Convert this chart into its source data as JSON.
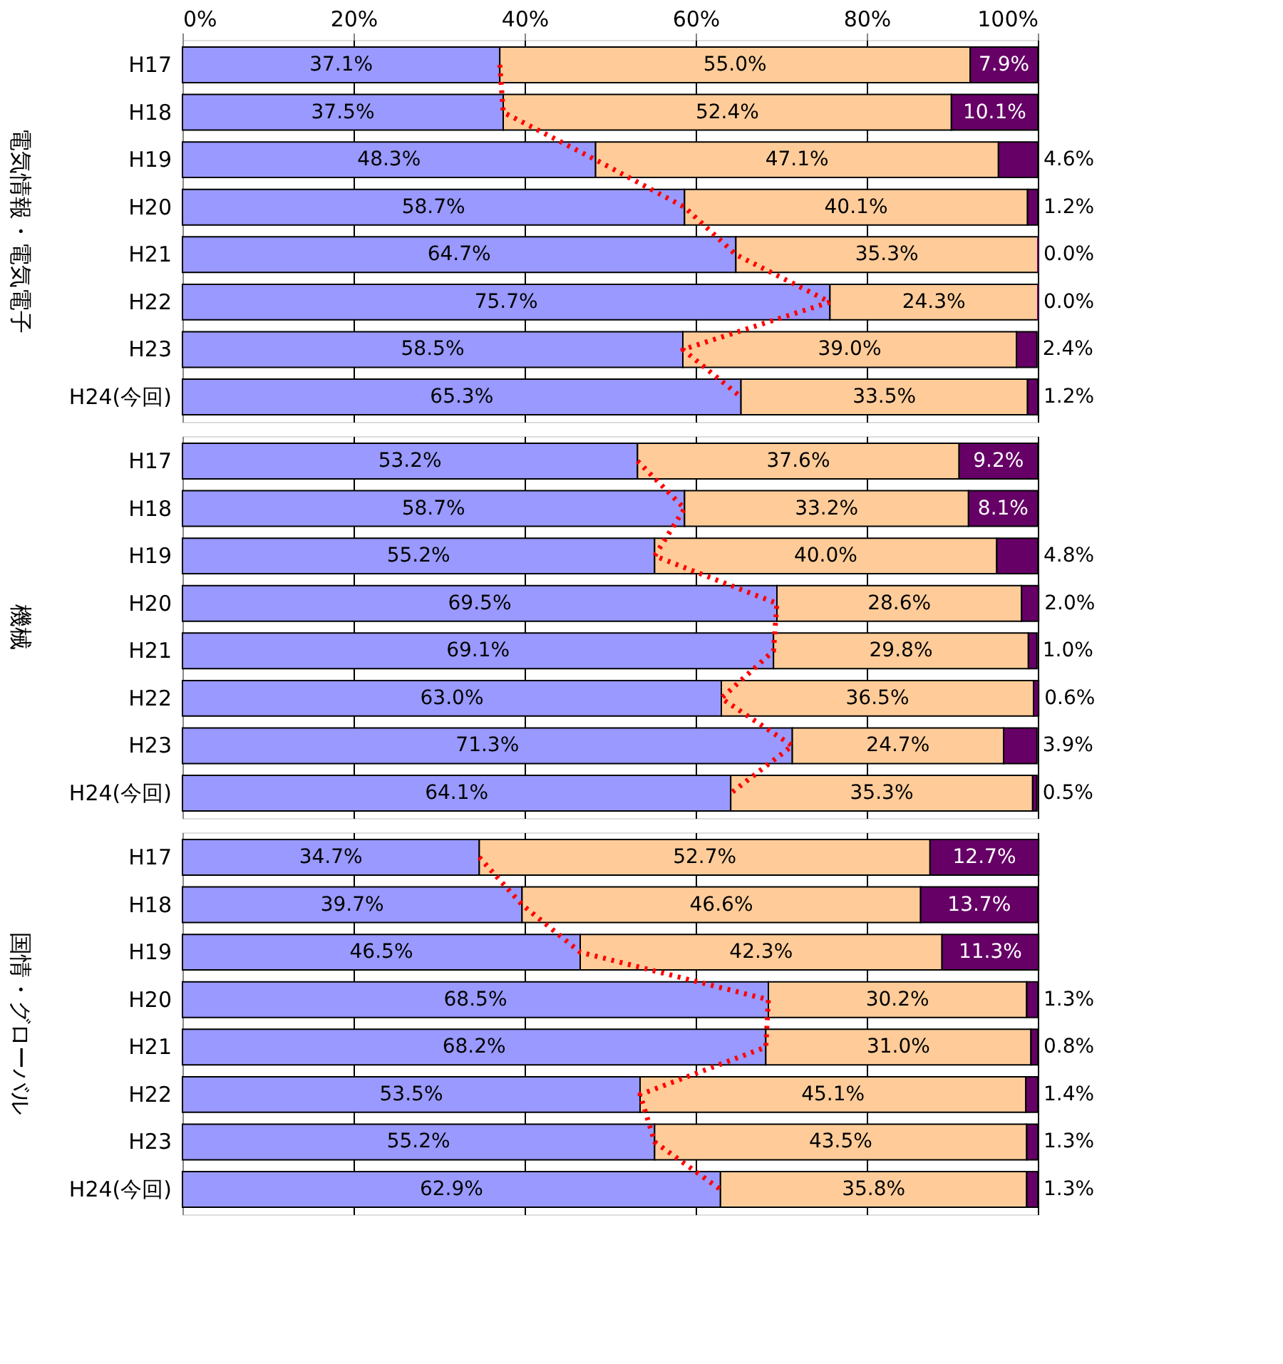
{
  "chart_data": [
    {
      "type": "bar",
      "orientation": "horizontal",
      "stacked": true,
      "title": "電気情報・電気電子",
      "categories": [
        "H17",
        "H18",
        "H19",
        "H20",
        "H21",
        "H22",
        "H23",
        "H24(今回)"
      ],
      "xlim": [
        0,
        100
      ],
      "xticks": [
        {
          "value": 0,
          "label": "0%"
        },
        {
          "value": 20,
          "label": "20%"
        },
        {
          "value": 40,
          "label": "40%"
        },
        {
          "value": 60,
          "label": "60%"
        },
        {
          "value": 80,
          "label": "80%"
        },
        {
          "value": 100,
          "label": "100%"
        }
      ],
      "grid": "x",
      "series": [
        {
          "color": "#9999ff",
          "values": [
            37.1,
            37.5,
            48.3,
            58.7,
            64.7,
            75.7,
            58.5,
            65.3
          ],
          "value_labels": [
            "37.1%",
            "37.5%",
            "48.3%",
            "58.7%",
            "64.7%",
            "75.7%",
            "58.5%",
            "65.3%"
          ]
        },
        {
          "color": "#ffcc99",
          "values": [
            55.0,
            52.4,
            47.1,
            40.1,
            35.3,
            24.3,
            39.0,
            33.5
          ],
          "value_labels": [
            "55.0%",
            "52.4%",
            "47.1%",
            "40.1%",
            "35.3%",
            "24.3%",
            "39.0%",
            "33.5%"
          ]
        },
        {
          "color": "#660066",
          "values": [
            7.9,
            10.1,
            4.6,
            1.2,
            0.0,
            0.0,
            2.4,
            1.2
          ],
          "value_labels": [
            "7.9%",
            "10.1%",
            "4.6%",
            "1.2%",
            "0.0%",
            "0.0%",
            "2.4%",
            "1.2%"
          ]
        },
        {
          "type": "line",
          "color": "#ff0000",
          "line_style": "dotted",
          "values": [
            37.1,
            37.5,
            48.3,
            58.7,
            64.7,
            75.7,
            58.5,
            65.3
          ]
        }
      ]
    },
    {
      "type": "bar",
      "orientation": "horizontal",
      "stacked": true,
      "title": "機械",
      "categories": [
        "H17",
        "H18",
        "H19",
        "H20",
        "H21",
        "H22",
        "H23",
        "H24(今回)"
      ],
      "xlim": [
        0,
        100
      ],
      "xticks": [
        {
          "value": 0,
          "label": null
        },
        {
          "value": 20,
          "label": null
        },
        {
          "value": 40,
          "label": null
        },
        {
          "value": 60,
          "label": null
        },
        {
          "value": 80,
          "label": null
        },
        {
          "value": 100,
          "label": null
        }
      ],
      "grid": "x",
      "tick_labels": "y",
      "series": [
        {
          "color": "#9999ff",
          "values": [
            53.2,
            58.7,
            55.2,
            69.5,
            69.1,
            63.0,
            71.3,
            64.1
          ],
          "value_labels": [
            "53.2%",
            "58.7%",
            "55.2%",
            "69.5%",
            "69.1%",
            "63.0%",
            "71.3%",
            "64.1%"
          ]
        },
        {
          "color": "#ffcc99",
          "values": [
            37.6,
            33.2,
            40.0,
            28.6,
            29.8,
            36.5,
            24.7,
            35.3
          ],
          "value_labels": [
            "37.6%",
            "33.2%",
            "40.0%",
            "28.6%",
            "29.8%",
            "36.5%",
            "24.7%",
            "35.3%"
          ]
        },
        {
          "color": "#660066",
          "values": [
            9.2,
            8.1,
            4.8,
            2.0,
            1.0,
            0.6,
            3.9,
            0.5
          ],
          "value_labels": [
            "9.2%",
            "8.1%",
            "4.8%",
            "2.0%",
            "1.0%",
            "0.6%",
            "3.9%",
            "0.5%"
          ]
        },
        {
          "type": "line",
          "color": "#ff0000",
          "line_style": "dotted",
          "values": [
            53.2,
            58.7,
            55.2,
            69.5,
            69.1,
            63.0,
            71.3,
            64.1
          ]
        }
      ]
    },
    {
      "type": "bar",
      "orientation": "horizontal",
      "stacked": true,
      "title": "国情・グローバル",
      "categories": [
        "H17",
        "H18",
        "H19",
        "H20",
        "H21",
        "H22",
        "H23",
        "H24(今回)"
      ],
      "xlim": [
        0,
        100
      ],
      "xticks": [
        {
          "value": 0,
          "label": null
        },
        {
          "value": 20,
          "label": null
        },
        {
          "value": 40,
          "label": null
        },
        {
          "value": 60,
          "label": null
        },
        {
          "value": 80,
          "label": null
        },
        {
          "value": 100,
          "label": null
        }
      ],
      "grid": "x",
      "tick_labels": "y",
      "series": [
        {
          "color": "#9999ff",
          "values": [
            34.7,
            39.7,
            46.5,
            68.5,
            68.2,
            53.5,
            55.2,
            62.9
          ],
          "value_labels": [
            "34.7%",
            "39.7%",
            "46.5%",
            "68.5%",
            "68.2%",
            "53.5%",
            "55.2%",
            "62.9%"
          ]
        },
        {
          "color": "#ffcc99",
          "values": [
            52.7,
            46.6,
            42.3,
            30.2,
            31.0,
            45.1,
            43.5,
            35.8
          ],
          "value_labels": [
            "52.7%",
            "46.6%",
            "42.3%",
            "30.2%",
            "31.0%",
            "45.1%",
            "43.5%",
            "35.8%"
          ]
        },
        {
          "color": "#660066",
          "values": [
            12.7,
            13.7,
            11.3,
            1.3,
            0.8,
            1.4,
            1.3,
            1.3
          ],
          "value_labels": [
            "12.7%",
            "13.7%",
            "11.3%",
            "1.3%",
            "0.8%",
            "1.4%",
            "1.3%",
            "1.3%"
          ]
        },
        {
          "type": "line",
          "color": "#ff0000",
          "line_style": "dotted",
          "values": [
            34.7,
            39.7,
            46.5,
            68.5,
            68.2,
            53.5,
            55.2,
            62.9
          ]
        }
      ]
    }
  ]
}
